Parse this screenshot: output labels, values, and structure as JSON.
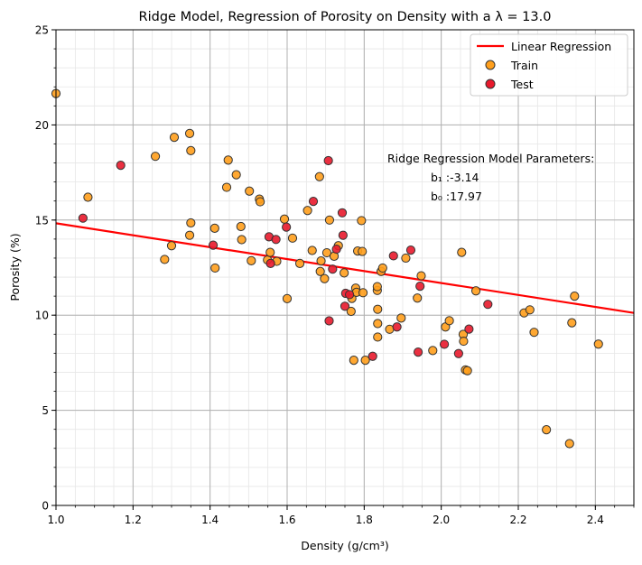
{
  "chart_data": {
    "type": "scatter",
    "title": "Ridge Model, Regression of Porosity on Density with a λ = 13.0",
    "xlabel": "Density (g/cm³)",
    "ylabel": "Porosity (%)",
    "xlim": [
      1.0,
      2.5
    ],
    "ylim": [
      0,
      25
    ],
    "x_ticks": [
      1.0,
      1.2,
      1.4,
      1.6,
      1.8,
      2.0,
      2.2,
      2.4
    ],
    "x_tick_labels": [
      "1.0",
      "1.2",
      "1.4",
      "1.6",
      "1.8",
      "2.0",
      "2.2",
      "2.4"
    ],
    "y_ticks": [
      0,
      5,
      10,
      15,
      20,
      25
    ],
    "y_tick_labels": [
      "0",
      "5",
      "10",
      "15",
      "20",
      "25"
    ],
    "x_minor_step": 0.05,
    "y_minor_step": 1,
    "grid": true,
    "legend": {
      "position": "top-right",
      "entries": [
        {
          "label": "Linear Regression",
          "kind": "line",
          "color": "#ff0000"
        },
        {
          "label": "Train",
          "kind": "marker",
          "color": "#ff9f1c"
        },
        {
          "label": "Test",
          "kind": "marker",
          "color": "#e8192c"
        }
      ]
    },
    "regression": {
      "name": "Linear Regression",
      "slope": -3.14,
      "intercept": 17.97,
      "color": "#ff0000"
    },
    "annotation": {
      "title": "Ridge Regression Model Parameters:",
      "b1_label": "b₁ :-3.14",
      "b0_label": "b₀ :17.97"
    },
    "series": [
      {
        "name": "Train",
        "color": "#ff9f1c",
        "points": [
          [
            1.0,
            21.65
          ],
          [
            1.083,
            16.2
          ],
          [
            1.282,
            12.93
          ],
          [
            1.3,
            13.65
          ],
          [
            1.307,
            19.35
          ],
          [
            1.347,
            19.55
          ],
          [
            1.347,
            14.2
          ],
          [
            1.35,
            14.85
          ],
          [
            1.35,
            18.65
          ],
          [
            1.258,
            18.35
          ],
          [
            1.412,
            14.57
          ],
          [
            1.413,
            12.48
          ],
          [
            1.443,
            16.72
          ],
          [
            1.447,
            18.15
          ],
          [
            1.468,
            17.38
          ],
          [
            1.48,
            14.66
          ],
          [
            1.482,
            13.97
          ],
          [
            1.502,
            16.52
          ],
          [
            1.507,
            12.86
          ],
          [
            1.528,
            16.1
          ],
          [
            1.53,
            15.96
          ],
          [
            1.549,
            12.9
          ],
          [
            1.556,
            13.3
          ],
          [
            1.573,
            12.83
          ],
          [
            1.593,
            15.05
          ],
          [
            1.6,
            10.87
          ],
          [
            1.614,
            14.05
          ],
          [
            1.633,
            12.72
          ],
          [
            1.653,
            15.5
          ],
          [
            1.665,
            13.4
          ],
          [
            1.684,
            17.28
          ],
          [
            1.686,
            12.3
          ],
          [
            1.688,
            12.85
          ],
          [
            1.697,
            11.92
          ],
          [
            1.703,
            13.28
          ],
          [
            1.71,
            15.0
          ],
          [
            1.722,
            13.1
          ],
          [
            1.733,
            13.65
          ],
          [
            1.748,
            12.22
          ],
          [
            1.766,
            10.2
          ],
          [
            1.768,
            10.88
          ],
          [
            1.773,
            7.63
          ],
          [
            1.778,
            11.42
          ],
          [
            1.78,
            11.2
          ],
          [
            1.783,
            13.37
          ],
          [
            1.793,
            14.97
          ],
          [
            1.795,
            13.35
          ],
          [
            1.797,
            11.18
          ],
          [
            1.803,
            7.63
          ],
          [
            1.834,
            11.3
          ],
          [
            1.834,
            11.5
          ],
          [
            1.835,
            10.31
          ],
          [
            1.835,
            9.56
          ],
          [
            1.835,
            8.85
          ],
          [
            1.844,
            12.3
          ],
          [
            1.848,
            12.48
          ],
          [
            1.866,
            9.26
          ],
          [
            1.896,
            9.85
          ],
          [
            1.908,
            13.0
          ],
          [
            1.938,
            10.9
          ],
          [
            1.948,
            12.07
          ],
          [
            2.011,
            9.38
          ],
          [
            2.021,
            9.71
          ],
          [
            2.053,
            13.3
          ],
          [
            2.057,
            8.99
          ],
          [
            2.058,
            8.63
          ],
          [
            2.063,
            7.12
          ],
          [
            2.068,
            7.08
          ],
          [
            2.09,
            11.28
          ],
          [
            2.215,
            10.12
          ],
          [
            2.23,
            10.28
          ],
          [
            2.241,
            9.1
          ],
          [
            2.273,
            3.98
          ],
          [
            2.333,
            3.25
          ],
          [
            2.339,
            9.6
          ],
          [
            2.346,
            11.0
          ],
          [
            2.408,
            8.48
          ],
          [
            1.978,
            8.14
          ]
        ]
      },
      {
        "name": "Test",
        "color": "#e8192c",
        "points": [
          [
            1.07,
            15.1
          ],
          [
            1.168,
            17.88
          ],
          [
            1.408,
            13.68
          ],
          [
            1.553,
            14.12
          ],
          [
            1.557,
            12.72
          ],
          [
            1.571,
            13.98
          ],
          [
            1.598,
            14.63
          ],
          [
            1.668,
            15.98
          ],
          [
            1.707,
            18.12
          ],
          [
            1.709,
            9.7
          ],
          [
            1.718,
            12.42
          ],
          [
            1.728,
            13.47
          ],
          [
            1.743,
            15.38
          ],
          [
            1.745,
            14.2
          ],
          [
            1.75,
            10.47
          ],
          [
            1.752,
            11.15
          ],
          [
            1.762,
            11.08
          ],
          [
            1.822,
            7.84
          ],
          [
            1.876,
            13.12
          ],
          [
            1.885,
            9.38
          ],
          [
            1.921,
            13.42
          ],
          [
            1.94,
            8.06
          ],
          [
            1.945,
            11.52
          ],
          [
            2.008,
            8.47
          ],
          [
            2.045,
            7.98
          ],
          [
            2.072,
            9.27
          ],
          [
            2.121,
            10.57
          ]
        ]
      }
    ]
  }
}
